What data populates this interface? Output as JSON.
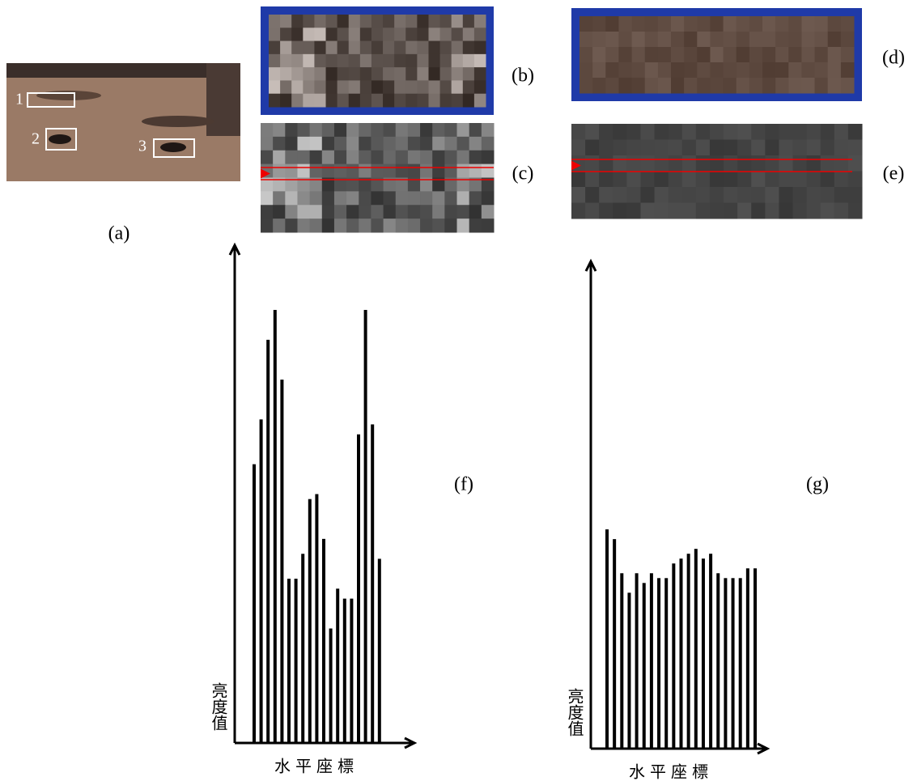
{
  "panels": {
    "a": {
      "label": "(a)",
      "regions": [
        "1",
        "2",
        "3"
      ]
    },
    "b": {
      "label": "(b)"
    },
    "c": {
      "label": "(c)"
    },
    "d": {
      "label": "(d)"
    },
    "e": {
      "label": "(e)"
    }
  },
  "chart_data": [
    {
      "type": "bar",
      "label": "(f)",
      "ylabel": "亮度值",
      "xlabel": "水平座標",
      "color": "#000000",
      "ylim": [
        0,
        100
      ],
      "values": [
        56,
        65,
        81,
        87,
        73,
        33,
        33,
        38,
        49,
        50,
        41,
        23,
        31,
        29,
        29,
        62,
        87,
        64,
        37
      ]
    },
    {
      "type": "bar",
      "label": "(g)",
      "ylabel": "亮度值",
      "xlabel": "水平座標",
      "color": "#000000",
      "ylim": [
        0,
        100
      ],
      "values": [
        45,
        43,
        36,
        32,
        36,
        34,
        36,
        35,
        35,
        38,
        39,
        40,
        41,
        39,
        40,
        36,
        35,
        35,
        35,
        37,
        37
      ]
    }
  ]
}
